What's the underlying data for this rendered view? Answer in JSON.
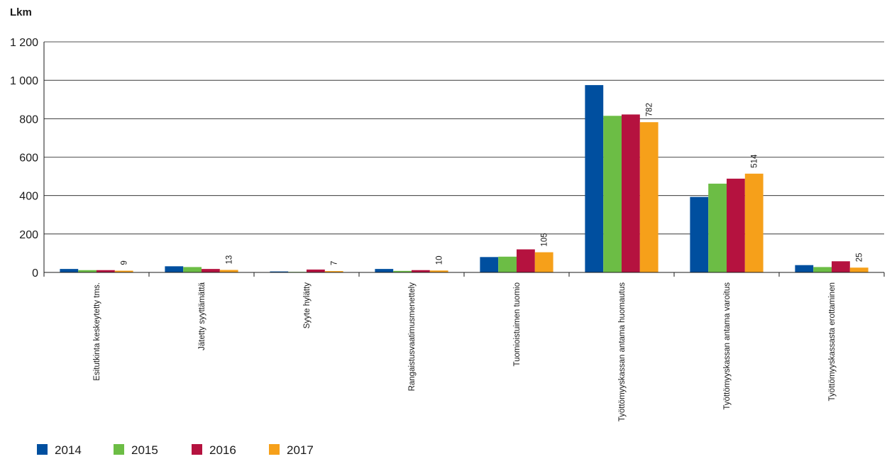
{
  "chart_data": {
    "type": "bar",
    "ylabel": "Lkm",
    "ylim": [
      0,
      1200
    ],
    "yticks": [
      0,
      200,
      400,
      600,
      800,
      1000,
      1200
    ],
    "ytick_labels": [
      "0",
      "200",
      "400",
      "600",
      "800",
      "1 000",
      "1 200"
    ],
    "grid": true,
    "legend_position": "bottom-left",
    "categories": [
      "Esitutkinta keskeytetty tms.",
      "Jätetty syyttämättä",
      "Syyte hylätty",
      "Rangaistusvaatimusmenettely",
      "Tuomioistuimen tuomio",
      "Työttömyyskassan antama huomautus",
      "Työttömyyskassan antama varoitus",
      "Työttömyyskassasta erottaminen"
    ],
    "series": [
      {
        "name": "2014",
        "color": "#004f9f",
        "values": [
          18,
          32,
          5,
          18,
          80,
          975,
          393,
          38
        ]
      },
      {
        "name": "2015",
        "color": "#6cbd45",
        "values": [
          12,
          28,
          3,
          8,
          82,
          815,
          462,
          28
        ]
      },
      {
        "name": "2016",
        "color": "#b5123f",
        "values": [
          12,
          18,
          15,
          12,
          120,
          822,
          488,
          58
        ]
      },
      {
        "name": "2017",
        "color": "#f6a01a",
        "values": [
          9,
          13,
          7,
          10,
          105,
          782,
          514,
          25
        ]
      }
    ],
    "data_labels": {
      "series": "2017",
      "values": [
        "9",
        "13",
        "7",
        "10",
        "105",
        "782",
        "514",
        "25"
      ]
    }
  }
}
